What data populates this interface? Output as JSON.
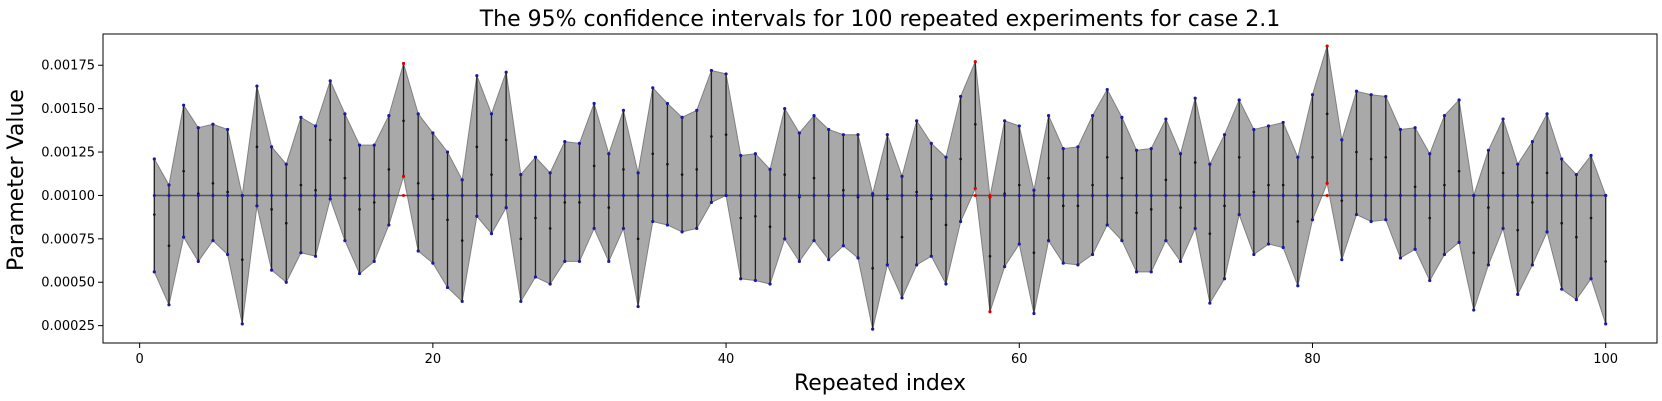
{
  "chart_data": {
    "type": "line",
    "title": "The 95% confidence intervals for 100 repeated experiments for case 2.1",
    "xlabel": "Repeated index",
    "ylabel": "Parameter Value",
    "xlim": [
      -2.5,
      103.5
    ],
    "ylim": [
      0.00015,
      0.00193
    ],
    "xticks": [
      0,
      20,
      40,
      60,
      80,
      100
    ],
    "xtick_labels": [
      "0",
      "20",
      "40",
      "60",
      "80",
      "100"
    ],
    "yticks": [
      0.00025,
      0.0005,
      0.00075,
      0.001,
      0.00125,
      0.0015,
      0.00175
    ],
    "ytick_labels": [
      "0.00025",
      "0.00050",
      "0.00075",
      "0.00100",
      "0.00125",
      "0.00150",
      "0.00175"
    ],
    "true_value": 0.001,
    "grid": false,
    "colors": {
      "band_fill": "#a9a9a9",
      "band_edge": "#808080",
      "interval_line": "#222222",
      "reference_line": "#555555",
      "covering_point": "#1a1aa0",
      "missing_point": "#e00000"
    },
    "x": [
      1,
      2,
      3,
      4,
      5,
      6,
      7,
      8,
      9,
      10,
      11,
      12,
      13,
      14,
      15,
      16,
      17,
      18,
      19,
      20,
      21,
      22,
      23,
      24,
      25,
      26,
      27,
      28,
      29,
      30,
      31,
      32,
      33,
      34,
      35,
      36,
      37,
      38,
      39,
      40,
      41,
      42,
      43,
      44,
      45,
      46,
      47,
      48,
      49,
      50,
      51,
      52,
      53,
      54,
      55,
      56,
      57,
      58,
      59,
      60,
      61,
      62,
      63,
      64,
      65,
      66,
      67,
      68,
      69,
      70,
      71,
      72,
      73,
      74,
      75,
      76,
      77,
      78,
      79,
      80,
      81,
      82,
      83,
      84,
      85,
      86,
      87,
      88,
      89,
      90,
      91,
      92,
      93,
      94,
      95,
      96,
      97,
      98,
      99,
      100
    ],
    "series": [
      {
        "name": "",
        "upper": [
          0.00121,
          0.00106,
          0.00152,
          0.00139,
          0.00141,
          0.00138,
          0.001,
          0.00163,
          0.00128,
          0.00118,
          0.00145,
          0.0014,
          0.00166,
          0.00147,
          0.00129,
          0.00129,
          0.00146,
          0.00176,
          0.00147,
          0.00136,
          0.00125,
          0.00109,
          0.00169,
          0.00147,
          0.00171,
          0.00112,
          0.00122,
          0.00113,
          0.00131,
          0.0013,
          0.00153,
          0.00124,
          0.00149,
          0.00113,
          0.00162,
          0.00153,
          0.00145,
          0.00149,
          0.00172,
          0.0017,
          0.00123,
          0.00124,
          0.00115,
          0.0015,
          0.00136,
          0.00146,
          0.00138,
          0.00135,
          0.00135,
          0.00101,
          0.00135,
          0.00111,
          0.00143,
          0.0013,
          0.00122,
          0.00157,
          0.00177,
          0.00099,
          0.00143,
          0.0014,
          0.00103,
          0.00146,
          0.00127,
          0.00128,
          0.00146,
          0.00161,
          0.00145,
          0.00126,
          0.00127,
          0.00144,
          0.00124,
          0.00156,
          0.00118,
          0.00135,
          0.00155,
          0.00138,
          0.0014,
          0.00142,
          0.00122,
          0.00158,
          0.00186,
          0.00132,
          0.0016,
          0.00158,
          0.00157,
          0.00138,
          0.00139,
          0.00124,
          0.00146,
          0.00155,
          0.001,
          0.00126,
          0.00144,
          0.00118,
          0.00131,
          0.00147,
          0.00121,
          0.00112,
          0.00123,
          0.001
        ],
        "lower": [
          0.00056,
          0.00037,
          0.00076,
          0.00062,
          0.00074,
          0.00066,
          0.00026,
          0.00094,
          0.00057,
          0.0005,
          0.00067,
          0.00065,
          0.00098,
          0.00074,
          0.00055,
          0.00062,
          0.00083,
          0.00111,
          0.00068,
          0.00061,
          0.00047,
          0.00039,
          0.00088,
          0.00078,
          0.00093,
          0.00039,
          0.00053,
          0.00049,
          0.00062,
          0.00062,
          0.00081,
          0.00062,
          0.00081,
          0.00036,
          0.00085,
          0.00083,
          0.00079,
          0.00081,
          0.00096,
          0.001,
          0.00052,
          0.00051,
          0.00049,
          0.00075,
          0.00062,
          0.00074,
          0.00063,
          0.00071,
          0.00064,
          0.00023,
          0.0006,
          0.00041,
          0.0006,
          0.00065,
          0.00049,
          0.00085,
          0.00104,
          0.00033,
          0.00059,
          0.00072,
          0.00032,
          0.00074,
          0.00061,
          0.0006,
          0.00066,
          0.00083,
          0.00074,
          0.00056,
          0.00056,
          0.00074,
          0.00062,
          0.00081,
          0.00038,
          0.00052,
          0.00089,
          0.00066,
          0.00072,
          0.0007,
          0.00048,
          0.00086,
          0.00107,
          0.00063,
          0.00089,
          0.00085,
          0.00086,
          0.00064,
          0.00069,
          0.00051,
          0.00066,
          0.00073,
          0.00034,
          0.0006,
          0.00081,
          0.00043,
          0.0006,
          0.00079,
          0.00046,
          0.0004,
          0.00052,
          0.00026
        ],
        "estimate": [
          0.00089,
          0.00071,
          0.00114,
          0.00101,
          0.00107,
          0.00102,
          0.00063,
          0.00128,
          0.00092,
          0.00084,
          0.00106,
          0.00103,
          0.00132,
          0.0011,
          0.00092,
          0.00096,
          0.00115,
          0.00143,
          0.00107,
          0.00098,
          0.00086,
          0.00074,
          0.00128,
          0.00112,
          0.00132,
          0.00075,
          0.00087,
          0.00081,
          0.00096,
          0.00096,
          0.00117,
          0.00093,
          0.00115,
          0.00075,
          0.00124,
          0.00118,
          0.00112,
          0.00115,
          0.00134,
          0.00135,
          0.00087,
          0.00088,
          0.00082,
          0.00112,
          0.00099,
          0.0011,
          0.001,
          0.00103,
          0.00099,
          0.00058,
          0.00098,
          0.00076,
          0.00102,
          0.00098,
          0.00083,
          0.00121,
          0.00141,
          0.00065,
          0.00101,
          0.00106,
          0.00067,
          0.0011,
          0.00094,
          0.00094,
          0.00106,
          0.00122,
          0.0011,
          0.0009,
          0.00092,
          0.00109,
          0.00093,
          0.00119,
          0.00078,
          0.00094,
          0.00122,
          0.00102,
          0.00106,
          0.00106,
          0.00085,
          0.00122,
          0.00147,
          0.00097,
          0.00125,
          0.00121,
          0.00122,
          0.001,
          0.00105,
          0.00087,
          0.00106,
          0.00114,
          0.00067,
          0.00093,
          0.00113,
          0.0008,
          0.00096,
          0.00113,
          0.00084,
          0.00076,
          0.00087,
          0.00062
        ]
      }
    ]
  }
}
